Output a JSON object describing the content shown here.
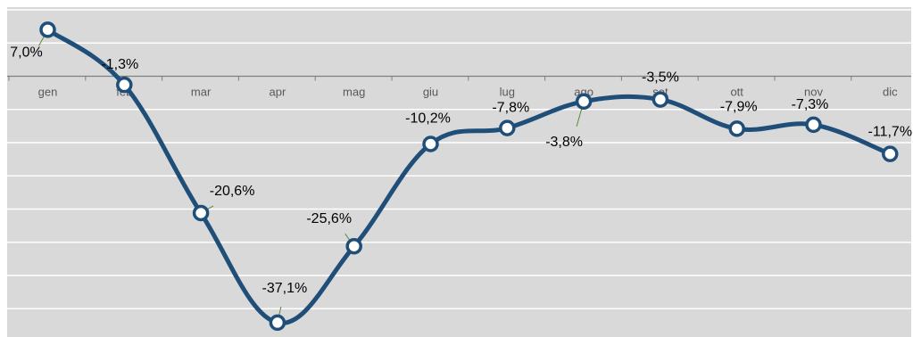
{
  "chart_data": {
    "type": "line",
    "categories": [
      "gen",
      "feb",
      "mar",
      "apr",
      "mag",
      "giu",
      "lug",
      "ago",
      "set",
      "ott",
      "nov",
      "dic"
    ],
    "series": [
      {
        "values": [
          7.0,
          -1.3,
          -20.6,
          -37.1,
          -25.6,
          -10.2,
          -7.8,
          -3.8,
          -3.5,
          -7.9,
          -7.3,
          -11.7
        ],
        "labels": [
          "7,0%",
          "-1,3%",
          "-20,6%",
          "-37,1%",
          "-25,6%",
          "-10,2%",
          "-7,8%",
          "-3,8%",
          "-3,5%",
          "-7,9%",
          "-7,3%",
          "-11,7%"
        ]
      }
    ],
    "title": "",
    "xlabel": "",
    "ylabel": "",
    "ylim": [
      -40,
      10
    ],
    "grid": true,
    "smooth": true,
    "colors": {
      "background": "#d9d9d9",
      "line": "#1f4e79",
      "marker_fill": "#ffffff",
      "leader": "#5a8a3a"
    }
  }
}
